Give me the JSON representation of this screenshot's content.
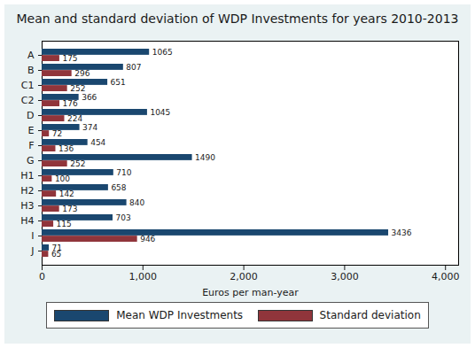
{
  "chart_data": {
    "type": "bar",
    "orientation": "horizontal",
    "title": "Mean and standard deviation of WDP Investments for years 2010-2013",
    "x_label": "Euros per man-year",
    "categories": [
      "A",
      "B",
      "C1",
      "C2",
      "D",
      "E",
      "F",
      "G",
      "H1",
      "H2",
      "H3",
      "H4",
      "I",
      "J"
    ],
    "series": [
      {
        "name": "Mean WDP Investments",
        "color": "#1a476f",
        "values": [
          1065,
          807,
          651,
          366,
          1045,
          374,
          454,
          1490,
          710,
          658,
          840,
          703,
          3436,
          71
        ]
      },
      {
        "name": "Standard deviation",
        "color": "#90353b",
        "values": [
          175,
          296,
          252,
          176,
          224,
          72,
          136,
          252,
          100,
          142,
          173,
          115,
          946,
          65
        ]
      }
    ],
    "xlim": [
      0,
      4130
    ],
    "xticks": [
      0,
      {
        "value": 1000,
        "label": "1,000"
      },
      {
        "value": 2000,
        "label": "2,000"
      },
      {
        "value": 3000,
        "label": "3,000"
      },
      {
        "value": 4000,
        "label": "4,000"
      }
    ],
    "grid": false,
    "data_labels": true,
    "legend": "bottom"
  }
}
